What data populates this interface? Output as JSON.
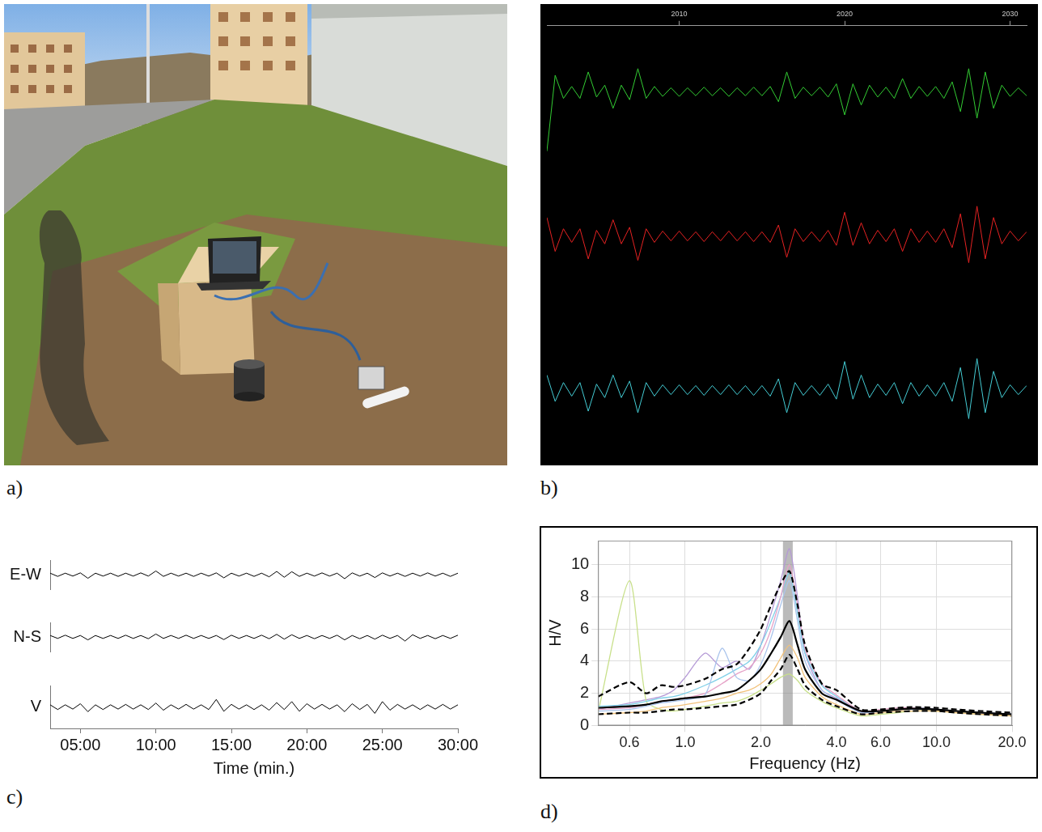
{
  "photo": {
    "panel": "a)"
  },
  "chart_data": [
    {
      "panel": "b)",
      "type": "seismogram",
      "x": [
        2002,
        2002.5,
        2003,
        2003.5,
        2004,
        2004.5,
        2005,
        2005.5,
        2006,
        2006.5,
        2007,
        2007.5,
        2008,
        2008.5,
        2009,
        2009.5,
        2010,
        2010.5,
        2011,
        2011.5,
        2012,
        2012.5,
        2013,
        2013.5,
        2014,
        2014.5,
        2015,
        2015.5,
        2016,
        2016.5,
        2017,
        2017.5,
        2018,
        2018.5,
        2019,
        2019.5,
        2020,
        2020.5,
        2021,
        2021.5,
        2022,
        2022.5,
        2023,
        2023.5,
        2024,
        2024.5,
        2025,
        2025.5,
        2026,
        2026.5,
        2027,
        2027.5,
        2028,
        2028.5,
        2029,
        2029.5,
        2030,
        2030.5,
        2031
      ],
      "series": [
        {
          "color": "#33cc33",
          "values": [
            -0.9,
            0.25,
            -0.1,
            0.08,
            -0.1,
            0.3,
            -0.08,
            0.1,
            -0.25,
            0.1,
            -0.12,
            0.35,
            -0.1,
            0.08,
            -0.07,
            0.06,
            -0.07,
            0.06,
            -0.06,
            0.07,
            -0.06,
            0.06,
            -0.07,
            0.06,
            -0.06,
            0.07,
            -0.06,
            0.08,
            -0.15,
            0.3,
            -0.1,
            0.07,
            -0.06,
            0.07,
            -0.08,
            0.12,
            -0.35,
            0.12,
            -0.2,
            0.1,
            -0.08,
            0.07,
            -0.1,
            0.2,
            -0.1,
            0.08,
            -0.07,
            0.08,
            -0.1,
            0.15,
            -0.3,
            0.35,
            -0.4,
            0.3,
            -0.25,
            0.1,
            -0.07,
            0.06,
            -0.06
          ]
        },
        {
          "color": "#e52222",
          "values": [
            0.25,
            -0.2,
            0.1,
            -0.08,
            0.1,
            -0.3,
            0.08,
            -0.1,
            0.22,
            -0.1,
            0.12,
            -0.32,
            0.1,
            -0.08,
            0.07,
            -0.06,
            0.07,
            -0.06,
            0.06,
            -0.07,
            0.06,
            -0.06,
            0.07,
            -0.06,
            0.06,
            -0.07,
            0.06,
            -0.08,
            0.15,
            -0.28,
            0.1,
            -0.07,
            0.06,
            -0.07,
            0.08,
            -0.12,
            0.32,
            -0.12,
            0.18,
            -0.1,
            0.08,
            -0.07,
            0.1,
            -0.2,
            0.1,
            -0.08,
            0.07,
            -0.08,
            0.1,
            -0.15,
            0.3,
            -0.35,
            0.4,
            -0.3,
            0.25,
            -0.1,
            0.07,
            -0.06,
            0.06
          ]
        },
        {
          "color": "#44ccd4",
          "values": [
            0.2,
            -0.15,
            0.1,
            -0.08,
            0.1,
            -0.28,
            0.08,
            -0.1,
            0.2,
            -0.1,
            0.12,
            -0.3,
            0.1,
            -0.08,
            0.07,
            -0.06,
            0.07,
            -0.06,
            0.06,
            -0.07,
            0.06,
            -0.06,
            0.07,
            -0.06,
            0.06,
            -0.07,
            0.06,
            -0.08,
            0.15,
            -0.3,
            0.1,
            -0.07,
            0.06,
            -0.07,
            0.08,
            -0.12,
            0.38,
            -0.12,
            0.2,
            -0.1,
            0.08,
            -0.07,
            0.1,
            -0.18,
            0.1,
            -0.08,
            0.07,
            -0.08,
            0.1,
            -0.15,
            0.3,
            -0.38,
            0.42,
            -0.3,
            0.25,
            -0.1,
            0.07,
            -0.06,
            0.06
          ]
        }
      ],
      "xlim": [
        2002,
        2031
      ],
      "xticks": [
        2010,
        2020,
        2030
      ],
      "ylim": [
        -1,
        1
      ],
      "tick_labels": "x",
      "grid": false
    },
    {
      "panel": "c)",
      "type": "seismogram",
      "x_label": "Time (min.)",
      "x": [
        3,
        3.5,
        4,
        4.5,
        5,
        5.5,
        6,
        6.5,
        7,
        7.5,
        8,
        8.5,
        9,
        9.5,
        10,
        10.5,
        11,
        11.5,
        12,
        12.5,
        13,
        13.5,
        14,
        14.5,
        15,
        15.5,
        16,
        16.5,
        17,
        17.5,
        18,
        18.5,
        19,
        19.5,
        20,
        20.5,
        21,
        21.5,
        22,
        22.5,
        23,
        23.5,
        24,
        24.5,
        25,
        25.5,
        26,
        26.5,
        27,
        27.5,
        28,
        28.5,
        29,
        29.5,
        30
      ],
      "series": [
        {
          "name": "E-W",
          "color": "#000000",
          "values": [
            0.1,
            -0.12,
            0.1,
            -0.1,
            0.12,
            -0.25,
            0.1,
            -0.1,
            0.1,
            -0.12,
            0.1,
            -0.1,
            0.12,
            -0.1,
            0.25,
            -0.12,
            0.1,
            -0.1,
            0.1,
            -0.12,
            0.1,
            -0.1,
            0.12,
            -0.22,
            0.1,
            -0.1,
            0.1,
            -0.12,
            0.1,
            -0.15,
            0.22,
            -0.18,
            0.2,
            -0.12,
            0.1,
            -0.1,
            0.12,
            -0.1,
            0.1,
            -0.28,
            0.12,
            -0.1,
            0.1,
            -0.2,
            0.12,
            -0.1,
            0.1,
            -0.12,
            0.1,
            -0.1,
            0.12,
            -0.1,
            0.1,
            -0.12,
            0.1
          ]
        },
        {
          "name": "N-S",
          "color": "#000000",
          "values": [
            0.1,
            -0.1,
            0.12,
            -0.1,
            0.1,
            -0.2,
            0.1,
            -0.1,
            0.1,
            -0.1,
            0.12,
            -0.1,
            0.1,
            -0.12,
            0.2,
            -0.1,
            0.1,
            -0.1,
            0.12,
            -0.1,
            0.1,
            -0.1,
            0.1,
            -0.18,
            0.12,
            -0.1,
            0.1,
            -0.1,
            0.12,
            -0.12,
            0.18,
            -0.15,
            0.15,
            -0.1,
            0.1,
            -0.12,
            0.1,
            -0.1,
            0.12,
            -0.2,
            0.1,
            -0.12,
            0.1,
            -0.15,
            0.12,
            -0.1,
            0.1,
            -0.28,
            0.15,
            -0.1,
            0.1,
            -0.12,
            0.1,
            -0.1,
            0.12
          ]
        },
        {
          "name": "V",
          "color": "#000000",
          "values": [
            0.1,
            -0.12,
            0.1,
            -0.1,
            0.15,
            -0.22,
            0.1,
            -0.12,
            0.1,
            -0.1,
            0.12,
            -0.1,
            0.1,
            -0.12,
            0.18,
            -0.15,
            0.1,
            -0.1,
            0.12,
            -0.1,
            0.1,
            -0.12,
            0.35,
            -0.2,
            0.12,
            -0.1,
            0.1,
            -0.12,
            0.1,
            -0.15,
            0.2,
            -0.12,
            0.25,
            -0.2,
            0.15,
            -0.1,
            0.12,
            -0.1,
            0.1,
            -0.22,
            0.15,
            -0.12,
            0.12,
            -0.3,
            0.25,
            -0.15,
            0.12,
            -0.1,
            0.1,
            -0.12,
            0.1,
            -0.1,
            0.12,
            -0.1,
            0.1
          ]
        }
      ],
      "xlim": [
        3,
        30
      ],
      "xticks": [
        {
          "value": 5,
          "label": "05:00"
        },
        {
          "value": 10,
          "label": "10:00"
        },
        {
          "value": 15,
          "label": "15:00"
        },
        {
          "value": 20,
          "label": "20:00"
        },
        {
          "value": 25,
          "label": "25:00"
        },
        {
          "value": 30,
          "label": "30:00"
        }
      ],
      "ylim": [
        -1,
        1
      ],
      "grid": false
    },
    {
      "panel": "d)",
      "type": "line",
      "x_label": "Frequency (Hz)",
      "y_label": "H/V",
      "log": "x",
      "x": [
        0.45,
        0.6,
        0.7,
        0.8,
        0.9,
        1.0,
        1.2,
        1.4,
        1.6,
        1.8,
        2.0,
        2.2,
        2.4,
        2.6,
        2.8,
        3.0,
        3.5,
        4.0,
        5.0,
        6.0,
        7.0,
        8.0,
        10,
        12,
        15,
        20
      ],
      "series": [
        {
          "color": "#b59ad6",
          "line_style": "solid",
          "values": [
            1.0,
            1.4,
            1.6,
            1.8,
            2.2,
            3.0,
            4.5,
            3.6,
            4.0,
            3.5,
            5.0,
            7.0,
            9.0,
            11.0,
            8.0,
            4.5,
            2.2,
            1.7,
            0.8,
            0.9,
            1.0,
            1.1,
            1.0,
            0.9,
            0.8,
            0.7
          ]
        },
        {
          "color": "#c8e08a",
          "line_style": "solid",
          "values": [
            0.8,
            9.0,
            1.5,
            1.0,
            0.9,
            1.0,
            1.2,
            1.4,
            1.5,
            1.8,
            2.2,
            2.6,
            3.0,
            3.2,
            2.8,
            2.2,
            1.5,
            1.1,
            0.6,
            0.7,
            0.8,
            0.9,
            0.9,
            0.8,
            0.7,
            0.6
          ]
        },
        {
          "color": "#7fd0e8",
          "line_style": "solid",
          "values": [
            1.2,
            1.3,
            1.5,
            1.7,
            1.8,
            2.0,
            2.5,
            3.0,
            3.5,
            4.0,
            5.0,
            6.5,
            8.0,
            9.5,
            7.0,
            4.5,
            2.5,
            1.8,
            0.9,
            0.9,
            1.0,
            1.1,
            1.0,
            0.9,
            0.8,
            0.7
          ]
        },
        {
          "color": "#e6a3c8",
          "line_style": "solid",
          "values": [
            1.0,
            1.1,
            1.3,
            1.5,
            1.6,
            1.7,
            2.0,
            2.6,
            3.2,
            3.6,
            4.5,
            6.0,
            8.0,
            10.0,
            7.5,
            4.8,
            2.6,
            1.9,
            0.9,
            1.0,
            1.1,
            1.1,
            1.0,
            0.9,
            0.8,
            0.7
          ]
        },
        {
          "color": "#a9c4ec",
          "line_style": "solid",
          "values": [
            0.9,
            1.0,
            1.2,
            1.4,
            1.5,
            1.6,
            1.9,
            4.8,
            3.0,
            2.8,
            3.8,
            5.5,
            7.5,
            9.0,
            6.5,
            4.0,
            2.2,
            1.6,
            0.8,
            0.9,
            1.0,
            1.0,
            1.0,
            0.9,
            0.8,
            0.7
          ]
        },
        {
          "color": "#f2c27a",
          "line_style": "solid",
          "values": [
            0.7,
            0.8,
            0.9,
            1.1,
            1.2,
            1.3,
            1.5,
            1.7,
            2.0,
            2.2,
            2.6,
            3.2,
            4.2,
            5.0,
            4.2,
            3.0,
            1.8,
            1.3,
            0.7,
            0.8,
            0.9,
            0.9,
            0.9,
            0.8,
            0.7,
            0.6
          ]
        },
        {
          "color": "#000000",
          "line_style": "dashed",
          "values": [
            1.8,
            2.7,
            2.0,
            2.5,
            2.4,
            2.5,
            2.9,
            3.5,
            3.8,
            4.8,
            6.0,
            7.5,
            8.8,
            9.6,
            7.5,
            5.0,
            2.6,
            2.2,
            1.0,
            1.0,
            1.1,
            1.15,
            1.1,
            1.0,
            0.9,
            0.8
          ]
        },
        {
          "color": "#000000",
          "line_style": "dashed",
          "values": [
            0.7,
            0.8,
            0.8,
            0.9,
            1.0,
            1.0,
            1.1,
            1.2,
            1.3,
            1.6,
            2.0,
            2.8,
            3.5,
            4.4,
            3.5,
            2.5,
            1.6,
            1.2,
            0.7,
            0.8,
            0.85,
            0.9,
            0.9,
            0.8,
            0.7,
            0.6
          ]
        },
        {
          "color": "#000000",
          "line_style": "solid",
          "values": [
            1.1,
            1.2,
            1.3,
            1.5,
            1.6,
            1.7,
            1.8,
            2.0,
            2.2,
            2.8,
            3.5,
            4.5,
            5.5,
            6.5,
            5.0,
            3.5,
            2.0,
            1.6,
            0.9,
            0.9,
            1.0,
            1.05,
            1.0,
            0.9,
            0.8,
            0.7
          ]
        }
      ],
      "xlim": [
        0.45,
        20
      ],
      "xticks": [
        0.6,
        {
          "value": 1,
          "label": "1.0"
        },
        {
          "value": 2,
          "label": "2.0"
        },
        {
          "value": 4,
          "label": "4.0"
        },
        {
          "value": 6,
          "label": "6.0"
        },
        {
          "value": 10,
          "label": "10.0"
        },
        {
          "value": 20,
          "label": "20.0"
        }
      ],
      "ylim": [
        0,
        11.5
      ],
      "yticks": [
        0,
        2,
        4,
        6,
        8,
        10
      ],
      "grid": true,
      "peak_band": [
        2.45,
        2.68
      ]
    }
  ]
}
